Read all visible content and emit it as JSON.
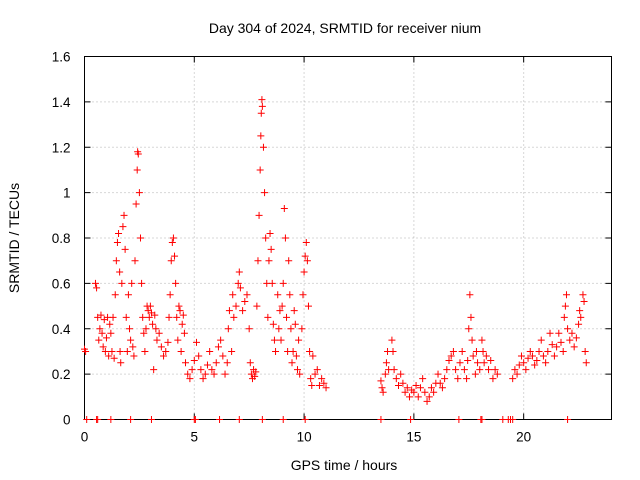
{
  "chart_data": {
    "type": "scatter",
    "title": "Day 304 of 2024, SRMTID for receiver nium",
    "xlabel": "GPS time / hours",
    "ylabel": "SRMTID / TECUs",
    "xlim": [
      0,
      24
    ],
    "ylim": [
      0,
      1.6
    ],
    "xticks": [
      0,
      5,
      10,
      15,
      20
    ],
    "xtick_labels": [
      "0",
      "5",
      "10",
      "15",
      "20"
    ],
    "yticks": [
      0,
      0.2,
      0.4,
      0.6,
      0.8,
      1.0,
      1.2,
      1.4,
      1.6
    ],
    "ytick_labels": [
      "0",
      "0.2",
      "0.4",
      "0.6",
      "0.8",
      "1",
      "1.2",
      "1.4",
      "1.6"
    ],
    "grid": true,
    "marker": "+",
    "color": "#ff0000",
    "series": [
      {
        "name": "SRMTID",
        "points": [
          [
            0.0,
            0.31
          ],
          [
            0.05,
            0.3
          ],
          [
            0.5,
            0.6
          ],
          [
            0.55,
            0.58
          ],
          [
            0.6,
            0.45
          ],
          [
            0.65,
            0.35
          ],
          [
            0.7,
            0.4
          ],
          [
            0.75,
            0.46
          ],
          [
            0.8,
            0.38
          ],
          [
            0.85,
            0.32
          ],
          [
            0.9,
            0.44
          ],
          [
            0.95,
            0.3
          ],
          [
            1.0,
            0.36
          ],
          [
            1.05,
            0.45
          ],
          [
            1.1,
            0.28
          ],
          [
            1.15,
            0.42
          ],
          [
            1.2,
            0.38
          ],
          [
            1.25,
            0.3
          ],
          [
            1.3,
            0.45
          ],
          [
            1.35,
            0.27
          ],
          [
            1.4,
            0.55
          ],
          [
            1.45,
            0.7
          ],
          [
            1.5,
            0.78
          ],
          [
            1.55,
            0.82
          ],
          [
            1.6,
            0.65
          ],
          [
            1.62,
            0.3
          ],
          [
            1.65,
            0.25
          ],
          [
            1.7,
            0.6
          ],
          [
            1.75,
            0.85
          ],
          [
            1.8,
            0.9
          ],
          [
            1.85,
            0.75
          ],
          [
            1.9,
            0.45
          ],
          [
            1.95,
            0.3
          ],
          [
            2.0,
            0.55
          ],
          [
            2.05,
            0.4
          ],
          [
            2.1,
            0.35
          ],
          [
            2.15,
            0.6
          ],
          [
            2.2,
            0.32
          ],
          [
            2.25,
            0.28
          ],
          [
            2.3,
            0.7
          ],
          [
            2.35,
            0.95
          ],
          [
            2.4,
            1.1
          ],
          [
            2.42,
            1.18
          ],
          [
            2.45,
            1.17
          ],
          [
            2.5,
            1.0
          ],
          [
            2.55,
            0.8
          ],
          [
            2.6,
            0.6
          ],
          [
            2.65,
            0.45
          ],
          [
            2.7,
            0.38
          ],
          [
            2.75,
            0.3
          ],
          [
            2.8,
            0.4
          ],
          [
            2.85,
            0.5
          ],
          [
            2.9,
            0.48
          ],
          [
            2.95,
            0.45
          ],
          [
            3.0,
            0.5
          ],
          [
            3.05,
            0.47
          ],
          [
            3.1,
            0.42
          ],
          [
            3.15,
            0.22
          ],
          [
            3.2,
            0.46
          ],
          [
            3.25,
            0.4
          ],
          [
            3.3,
            0.35
          ],
          [
            3.4,
            0.38
          ],
          [
            3.5,
            0.32
          ],
          [
            3.6,
            0.28
          ],
          [
            3.7,
            0.3
          ],
          [
            3.8,
            0.34
          ],
          [
            3.85,
            0.45
          ],
          [
            3.9,
            0.55
          ],
          [
            3.95,
            0.7
          ],
          [
            4.0,
            0.78
          ],
          [
            4.05,
            0.8
          ],
          [
            4.1,
            0.72
          ],
          [
            4.15,
            0.6
          ],
          [
            4.2,
            0.45
          ],
          [
            4.25,
            0.35
          ],
          [
            4.3,
            0.5
          ],
          [
            4.35,
            0.48
          ],
          [
            4.4,
            0.3
          ],
          [
            4.45,
            0.42
          ],
          [
            4.5,
            0.46
          ],
          [
            4.55,
            0.38
          ],
          [
            4.6,
            0.25
          ],
          [
            4.7,
            0.2
          ],
          [
            4.8,
            0.18
          ],
          [
            4.9,
            0.22
          ],
          [
            5.0,
            0.26
          ],
          [
            5.1,
            0.34
          ],
          [
            5.2,
            0.28
          ],
          [
            5.3,
            0.22
          ],
          [
            5.4,
            0.18
          ],
          [
            5.5,
            0.2
          ],
          [
            5.6,
            0.24
          ],
          [
            5.7,
            0.3
          ],
          [
            5.8,
            0.22
          ],
          [
            5.9,
            0.2
          ],
          [
            6.0,
            0.25
          ],
          [
            6.1,
            0.32
          ],
          [
            6.2,
            0.35
          ],
          [
            6.3,
            0.28
          ],
          [
            6.4,
            0.2
          ],
          [
            6.5,
            0.25
          ],
          [
            6.55,
            0.4
          ],
          [
            6.6,
            0.48
          ],
          [
            6.7,
            0.3
          ],
          [
            6.75,
            0.55
          ],
          [
            6.8,
            0.45
          ],
          [
            6.9,
            0.5
          ],
          [
            7.0,
            0.6
          ],
          [
            7.05,
            0.65
          ],
          [
            7.1,
            0.58
          ],
          [
            7.2,
            0.48
          ],
          [
            7.3,
            0.52
          ],
          [
            7.4,
            0.55
          ],
          [
            7.5,
            0.4
          ],
          [
            7.55,
            0.25
          ],
          [
            7.6,
            0.2
          ],
          [
            7.65,
            0.18
          ],
          [
            7.7,
            0.22
          ],
          [
            7.75,
            0.19
          ],
          [
            7.8,
            0.21
          ],
          [
            7.85,
            0.5
          ],
          [
            7.9,
            0.7
          ],
          [
            7.95,
            0.9
          ],
          [
            8.0,
            1.1
          ],
          [
            8.03,
            1.25
          ],
          [
            8.05,
            1.35
          ],
          [
            8.08,
            1.41
          ],
          [
            8.1,
            1.38
          ],
          [
            8.15,
            1.2
          ],
          [
            8.2,
            1.0
          ],
          [
            8.25,
            0.8
          ],
          [
            8.3,
            0.6
          ],
          [
            8.35,
            0.45
          ],
          [
            8.4,
            0.7
          ],
          [
            8.45,
            0.82
          ],
          [
            8.5,
            0.75
          ],
          [
            8.55,
            0.6
          ],
          [
            8.6,
            0.42
          ],
          [
            8.65,
            0.35
          ],
          [
            8.7,
            0.3
          ],
          [
            8.8,
            0.55
          ],
          [
            8.85,
            0.4
          ],
          [
            8.9,
            0.48
          ],
          [
            8.95,
            0.35
          ],
          [
            9.0,
            0.5
          ],
          [
            9.05,
            0.6
          ],
          [
            9.1,
            0.93
          ],
          [
            9.15,
            0.8
          ],
          [
            9.2,
            0.45
          ],
          [
            9.25,
            0.3
          ],
          [
            9.3,
            0.7
          ],
          [
            9.35,
            0.55
          ],
          [
            9.4,
            0.4
          ],
          [
            9.45,
            0.25
          ],
          [
            9.5,
            0.3
          ],
          [
            9.55,
            0.48
          ],
          [
            9.6,
            0.42
          ],
          [
            9.65,
            0.28
          ],
          [
            9.7,
            0.22
          ],
          [
            9.75,
            0.35
          ],
          [
            9.8,
            0.2
          ],
          [
            9.9,
            0.4
          ],
          [
            9.95,
            0.55
          ],
          [
            10.0,
            0.65
          ],
          [
            10.05,
            0.72
          ],
          [
            10.1,
            0.78
          ],
          [
            10.15,
            0.7
          ],
          [
            10.2,
            0.5
          ],
          [
            10.25,
            0.3
          ],
          [
            10.3,
            0.18
          ],
          [
            10.35,
            0.15
          ],
          [
            10.4,
            0.28
          ],
          [
            10.5,
            0.2
          ],
          [
            10.6,
            0.22
          ],
          [
            10.7,
            0.15
          ],
          [
            10.8,
            0.18
          ],
          [
            10.9,
            0.16
          ],
          [
            11.0,
            0.14
          ],
          [
            13.5,
            0.17
          ],
          [
            13.55,
            0.14
          ],
          [
            13.6,
            0.12
          ],
          [
            13.7,
            0.2
          ],
          [
            13.75,
            0.25
          ],
          [
            13.8,
            0.3
          ],
          [
            13.85,
            0.22
          ],
          [
            14.0,
            0.35
          ],
          [
            14.05,
            0.3
          ],
          [
            14.1,
            0.22
          ],
          [
            14.2,
            0.18
          ],
          [
            14.3,
            0.15
          ],
          [
            14.4,
            0.2
          ],
          [
            14.5,
            0.16
          ],
          [
            14.6,
            0.12
          ],
          [
            14.7,
            0.14
          ],
          [
            14.8,
            0.1
          ],
          [
            14.9,
            0.13
          ],
          [
            15.0,
            0.12
          ],
          [
            15.1,
            0.15
          ],
          [
            15.2,
            0.1
          ],
          [
            15.3,
            0.14
          ],
          [
            15.4,
            0.18
          ],
          [
            15.5,
            0.12
          ],
          [
            15.6,
            0.08
          ],
          [
            15.7,
            0.1
          ],
          [
            15.8,
            0.14
          ],
          [
            15.9,
            0.12
          ],
          [
            16.0,
            0.16
          ],
          [
            16.1,
            0.2
          ],
          [
            16.2,
            0.16
          ],
          [
            16.3,
            0.14
          ],
          [
            16.4,
            0.18
          ],
          [
            16.5,
            0.22
          ],
          [
            16.6,
            0.26
          ],
          [
            16.7,
            0.28
          ],
          [
            16.8,
            0.3
          ],
          [
            16.9,
            0.22
          ],
          [
            17.0,
            0.18
          ],
          [
            17.1,
            0.25
          ],
          [
            17.2,
            0.3
          ],
          [
            17.3,
            0.22
          ],
          [
            17.4,
            0.18
          ],
          [
            17.45,
            0.26
          ],
          [
            17.5,
            0.4
          ],
          [
            17.55,
            0.55
          ],
          [
            17.6,
            0.45
          ],
          [
            17.65,
            0.35
          ],
          [
            17.7,
            0.28
          ],
          [
            17.8,
            0.2
          ],
          [
            17.85,
            0.3
          ],
          [
            17.9,
            0.25
          ],
          [
            18.0,
            0.22
          ],
          [
            18.1,
            0.35
          ],
          [
            18.15,
            0.3
          ],
          [
            18.2,
            0.25
          ],
          [
            18.3,
            0.28
          ],
          [
            18.4,
            0.22
          ],
          [
            18.5,
            0.26
          ],
          [
            18.6,
            0.18
          ],
          [
            18.7,
            0.22
          ],
          [
            18.8,
            0.2
          ],
          [
            19.5,
            0.18
          ],
          [
            19.6,
            0.22
          ],
          [
            19.7,
            0.2
          ],
          [
            19.8,
            0.24
          ],
          [
            19.9,
            0.28
          ],
          [
            20.0,
            0.25
          ],
          [
            20.1,
            0.22
          ],
          [
            20.2,
            0.27
          ],
          [
            20.3,
            0.3
          ],
          [
            20.4,
            0.28
          ],
          [
            20.5,
            0.24
          ],
          [
            20.6,
            0.26
          ],
          [
            20.7,
            0.3
          ],
          [
            20.8,
            0.35
          ],
          [
            20.9,
            0.28
          ],
          [
            21.0,
            0.25
          ],
          [
            21.1,
            0.3
          ],
          [
            21.2,
            0.38
          ],
          [
            21.3,
            0.33
          ],
          [
            21.4,
            0.28
          ],
          [
            21.5,
            0.32
          ],
          [
            21.6,
            0.38
          ],
          [
            21.7,
            0.34
          ],
          [
            21.8,
            0.3
          ],
          [
            21.85,
            0.45
          ],
          [
            21.9,
            0.5
          ],
          [
            21.95,
            0.55
          ],
          [
            22.0,
            0.4
          ],
          [
            22.1,
            0.35
          ],
          [
            22.2,
            0.38
          ],
          [
            22.3,
            0.32
          ],
          [
            22.4,
            0.36
          ],
          [
            22.5,
            0.42
          ],
          [
            22.55,
            0.48
          ],
          [
            22.6,
            0.45
          ],
          [
            22.7,
            0.55
          ],
          [
            22.75,
            0.52
          ],
          [
            22.8,
            0.3
          ],
          [
            22.85,
            0.25
          ]
        ]
      },
      {
        "name": "zero-markers",
        "points": [
          [
            0.1,
            0
          ],
          [
            0.55,
            0
          ],
          [
            0.6,
            0
          ],
          [
            1.2,
            0
          ],
          [
            2.1,
            0
          ],
          [
            3.05,
            0
          ],
          [
            5.0,
            0
          ],
          [
            5.05,
            0
          ],
          [
            6.15,
            0
          ],
          [
            7.05,
            0
          ],
          [
            8.1,
            0
          ],
          [
            9.05,
            0
          ],
          [
            10.05,
            0
          ],
          [
            13.5,
            0
          ],
          [
            14.85,
            0
          ],
          [
            17.05,
            0
          ],
          [
            18.05,
            0
          ],
          [
            18.1,
            0
          ],
          [
            19.05,
            0
          ],
          [
            19.3,
            0
          ],
          [
            19.4,
            0
          ],
          [
            19.5,
            0
          ],
          [
            22.0,
            0
          ]
        ]
      }
    ]
  }
}
